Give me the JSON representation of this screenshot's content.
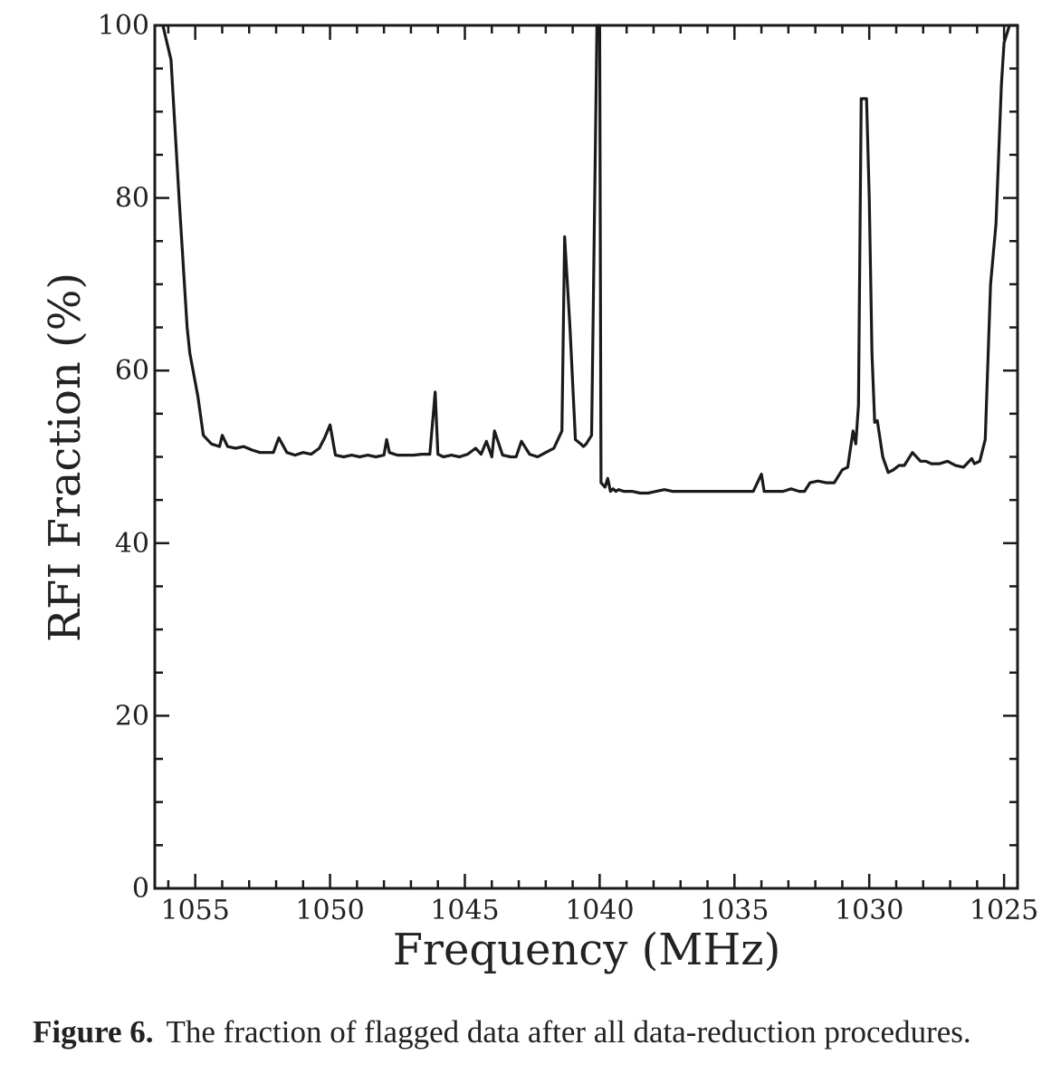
{
  "chart_data": {
    "type": "line",
    "title": "",
    "xlabel": "Frequency (MHz)",
    "ylabel": "RFI Fraction (%)",
    "xlim": [
      1056.5,
      1024.5
    ],
    "ylim": [
      0,
      100
    ],
    "x_reversed": true,
    "xticks": [
      1055,
      1050,
      1045,
      1040,
      1035,
      1030,
      1025
    ],
    "yticks": [
      0,
      20,
      40,
      60,
      80,
      100
    ],
    "xtick_labels": [
      "1055",
      "1050",
      "1045",
      "1040",
      "1035",
      "1030",
      "1025"
    ],
    "ytick_labels": [
      "0",
      "20",
      "40",
      "60",
      "80",
      "100"
    ],
    "grid": false,
    "line_color": "#1a1a1a",
    "series": [
      {
        "x": [
          1056.2,
          1055.9,
          1055.6,
          1055.3,
          1055.2,
          1054.9,
          1054.7,
          1054.4,
          1054.1,
          1054.0,
          1053.8,
          1053.5,
          1053.2,
          1052.9,
          1052.6,
          1052.3,
          1052.1,
          1051.9,
          1051.6,
          1051.3,
          1051.0,
          1050.7,
          1050.4,
          1050.2,
          1050.0,
          1049.8,
          1049.5,
          1049.2,
          1048.9,
          1048.6,
          1048.3,
          1048.0,
          1047.9,
          1047.8,
          1047.5,
          1047.2,
          1046.9,
          1046.6,
          1046.3,
          1046.1,
          1046.0,
          1045.8,
          1045.5,
          1045.2,
          1044.9,
          1044.6,
          1044.4,
          1044.2,
          1044.0,
          1043.9,
          1043.6,
          1043.3,
          1043.1,
          1042.9,
          1042.6,
          1042.3,
          1042.0,
          1041.7,
          1041.4,
          1041.3,
          1041.1,
          1040.9,
          1040.7,
          1040.6,
          1040.5,
          1040.3,
          1040.1,
          1040.05,
          1040.0,
          1039.95,
          1039.8,
          1039.7,
          1039.6,
          1039.5,
          1039.4,
          1039.3,
          1039.1,
          1038.8,
          1038.5,
          1038.2,
          1037.9,
          1037.6,
          1037.3,
          1037.0,
          1036.7,
          1036.4,
          1036.1,
          1035.8,
          1035.5,
          1035.2,
          1034.9,
          1034.6,
          1034.3,
          1034.0,
          1033.9,
          1033.8,
          1033.5,
          1033.2,
          1032.9,
          1032.6,
          1032.4,
          1032.2,
          1031.9,
          1031.6,
          1031.3,
          1031.0,
          1030.8,
          1030.6,
          1030.5,
          1030.4,
          1030.3,
          1030.2,
          1030.1,
          1030.0,
          1029.9,
          1029.8,
          1029.7,
          1029.5,
          1029.3,
          1029.1,
          1028.9,
          1028.7,
          1028.4,
          1028.1,
          1027.9,
          1027.7,
          1027.4,
          1027.1,
          1026.8,
          1026.5,
          1026.2,
          1026.1,
          1025.9,
          1025.7,
          1025.5,
          1025.3,
          1025.1,
          1025.0,
          1024.8,
          1024.6,
          1024.5
        ],
        "y": [
          100,
          96,
          80,
          65,
          62,
          57,
          52.5,
          51.5,
          51.2,
          52.5,
          51.2,
          51.0,
          51.2,
          50.8,
          50.5,
          50.5,
          50.5,
          52.2,
          50.5,
          50.2,
          50.5,
          50.3,
          51.0,
          52.2,
          53.7,
          50.2,
          50.0,
          50.2,
          50.0,
          50.2,
          50.0,
          50.2,
          52.0,
          50.5,
          50.2,
          50.2,
          50.2,
          50.3,
          50.3,
          57.5,
          50.3,
          50.0,
          50.2,
          50.0,
          50.3,
          51.0,
          50.3,
          51.8,
          50.0,
          53.0,
          50.2,
          50.0,
          50.0,
          51.8,
          50.3,
          50.0,
          50.5,
          51.0,
          53.0,
          75.5,
          65.0,
          52.0,
          51.5,
          51.2,
          51.5,
          52.5,
          100,
          100,
          100,
          47.0,
          46.5,
          47.5,
          46.0,
          46.3,
          46.0,
          46.2,
          46.0,
          46.0,
          45.8,
          45.8,
          46.0,
          46.2,
          46.0,
          46.0,
          46.0,
          46.0,
          46.0,
          46.0,
          46.0,
          46.0,
          46.0,
          46.0,
          46.0,
          48.0,
          46.0,
          46.0,
          46.0,
          46.0,
          46.3,
          46.0,
          46.0,
          47.0,
          47.2,
          47.0,
          47.0,
          48.5,
          48.8,
          53.0,
          51.5,
          56.0,
          91.5,
          91.5,
          91.5,
          80.0,
          62.0,
          54.0,
          54.2,
          50.0,
          48.2,
          48.5,
          49.0,
          49.0,
          50.5,
          49.5,
          49.5,
          49.2,
          49.2,
          49.5,
          49.0,
          48.8,
          49.8,
          49.2,
          49.5,
          52.0,
          70.0,
          77.0,
          93.0,
          98.0,
          100,
          100,
          100
        ]
      }
    ]
  },
  "caption": {
    "label": "Figure 6.",
    "text": "The fraction of flagged data after all data-reduction procedures."
  }
}
